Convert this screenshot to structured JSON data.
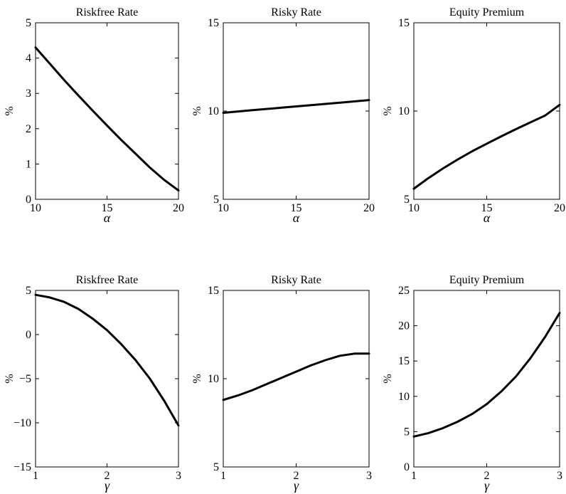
{
  "chart_data": [
    {
      "type": "line",
      "title": "Riskfree Rate",
      "xlabel": "α",
      "ylabel": "%",
      "xlim": [
        10,
        20
      ],
      "ylim": [
        0,
        5
      ],
      "xticks": [
        "10",
        "15",
        "20"
      ],
      "yticks": [
        "0",
        "1",
        "2",
        "3",
        "4",
        "5"
      ],
      "grid": false,
      "x": [
        10,
        11,
        12,
        13,
        14,
        15,
        16,
        17,
        18,
        19,
        20
      ],
      "y": [
        4.3,
        3.84,
        3.38,
        2.94,
        2.51,
        2.09,
        1.68,
        1.29,
        0.9,
        0.55,
        0.25
      ],
      "series_color": "#000000"
    },
    {
      "type": "line",
      "title": "Risky Rate",
      "xlabel": "α",
      "ylabel": "%",
      "xlim": [
        10,
        20
      ],
      "ylim": [
        5,
        15
      ],
      "xticks": [
        "10",
        "15",
        "20"
      ],
      "yticks": [
        "5",
        "10",
        "15"
      ],
      "grid": false,
      "x": [
        10,
        12,
        14,
        16,
        18,
        20
      ],
      "y": [
        9.9,
        10.05,
        10.19,
        10.33,
        10.47,
        10.62
      ],
      "series_color": "#000000"
    },
    {
      "type": "line",
      "title": "Equity Premium",
      "xlabel": "α",
      "ylabel": "%",
      "xlim": [
        10,
        20
      ],
      "ylim": [
        5,
        15
      ],
      "xticks": [
        "10",
        "15",
        "20"
      ],
      "yticks": [
        "5",
        "10",
        "15"
      ],
      "grid": false,
      "x": [
        10,
        11,
        12,
        13,
        14,
        15,
        16,
        17,
        18,
        19,
        20
      ],
      "y": [
        5.6,
        6.2,
        6.75,
        7.25,
        7.72,
        8.15,
        8.57,
        8.97,
        9.36,
        9.74,
        10.35
      ],
      "series_color": "#000000"
    },
    {
      "type": "line",
      "title": "Riskfree Rate",
      "xlabel": "γ",
      "ylabel": "%",
      "xlim": [
        1,
        3
      ],
      "ylim": [
        -15,
        5
      ],
      "xticks": [
        "1",
        "2",
        "3"
      ],
      "yticks": [
        "−15",
        "−10",
        "−5",
        "0",
        "5"
      ],
      "grid": false,
      "x": [
        1,
        1.2,
        1.4,
        1.6,
        1.8,
        2,
        2.2,
        2.4,
        2.6,
        2.8,
        3
      ],
      "y": [
        4.5,
        4.2,
        3.7,
        2.9,
        1.8,
        0.5,
        -1.1,
        -2.9,
        -5,
        -7.5,
        -10.3
      ],
      "series_color": "#000000"
    },
    {
      "type": "line",
      "title": "Risky Rate",
      "xlabel": "γ",
      "ylabel": "%",
      "xlim": [
        1,
        3
      ],
      "ylim": [
        5,
        15
      ],
      "xticks": [
        "1",
        "2",
        "3"
      ],
      "yticks": [
        "5",
        "10",
        "15"
      ],
      "grid": false,
      "x": [
        1,
        1.2,
        1.4,
        1.6,
        1.8,
        2,
        2.2,
        2.4,
        2.6,
        2.8,
        3
      ],
      "y": [
        8.8,
        9.05,
        9.35,
        9.7,
        10.05,
        10.4,
        10.75,
        11.05,
        11.3,
        11.42,
        11.42
      ],
      "series_color": "#000000"
    },
    {
      "type": "line",
      "title": "Equity Premium",
      "xlabel": "γ",
      "ylabel": "%",
      "xlim": [
        1,
        3
      ],
      "ylim": [
        0,
        25
      ],
      "xticks": [
        "1",
        "2",
        "3"
      ],
      "yticks": [
        "0",
        "5",
        "10",
        "15",
        "20",
        "25"
      ],
      "grid": false,
      "x": [
        1,
        1.2,
        1.4,
        1.6,
        1.8,
        2,
        2.2,
        2.4,
        2.6,
        2.8,
        3
      ],
      "y": [
        4.3,
        4.8,
        5.5,
        6.4,
        7.5,
        8.9,
        10.7,
        12.8,
        15.4,
        18.4,
        21.8
      ],
      "series_color": "#000000"
    }
  ]
}
